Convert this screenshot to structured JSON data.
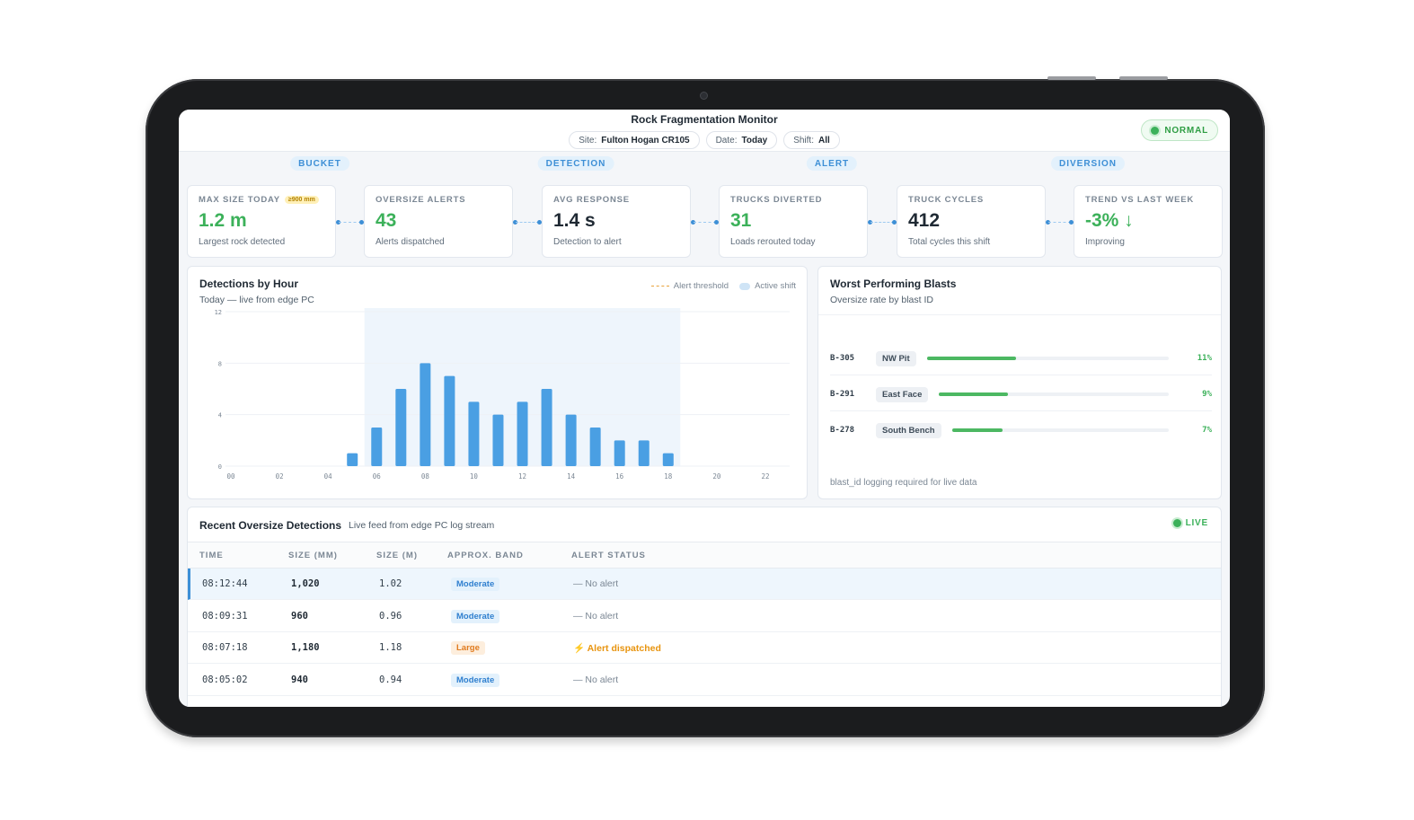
{
  "app": {
    "title": "Rock Fragmentation Monitor",
    "status": "NORMAL",
    "filters": [
      {
        "label": "Site:",
        "value": "Fulton Hogan CR105"
      },
      {
        "label": "Date:",
        "value": "Today"
      },
      {
        "label": "Shift:",
        "value": "All"
      }
    ]
  },
  "stages": [
    "BUCKET",
    "DETECTION",
    "ALERT",
    "DIVERSION"
  ],
  "kpis": [
    {
      "label": "MAX SIZE TODAY",
      "badge": "≥900 mm",
      "value": "1.2 m",
      "sub": "Largest rock detected",
      "color": "green"
    },
    {
      "label": "OVERSIZE ALERTS",
      "value": "43",
      "sub": "Alerts dispatched",
      "color": "green"
    },
    {
      "label": "AVG RESPONSE",
      "value": "1.4 s",
      "sub": "Detection to alert",
      "color": "dark"
    },
    {
      "label": "TRUCKS DIVERTED",
      "value": "31",
      "sub": "Loads rerouted today",
      "color": "green"
    },
    {
      "label": "TRUCK CYCLES",
      "value": "412",
      "sub": "Total cycles this shift",
      "color": "dark"
    },
    {
      "label": "TREND VS LAST WEEK",
      "value": "-3% ↓",
      "sub": "Improving",
      "color": "green"
    }
  ],
  "detections_panel": {
    "title": "Detections by Hour",
    "subtitle": "Today — live from edge PC",
    "legend_threshold": "Alert threshold",
    "legend_shift": "Active shift"
  },
  "chart_data": {
    "type": "bar",
    "title": "Detections by Hour",
    "x": [
      0,
      1,
      2,
      3,
      4,
      5,
      6,
      7,
      8,
      9,
      10,
      11,
      12,
      13,
      14,
      15,
      16,
      17,
      18,
      19,
      20,
      21,
      22,
      23
    ],
    "values": [
      0,
      0,
      0,
      0,
      0,
      1,
      3,
      6,
      8,
      7,
      5,
      4,
      5,
      6,
      4,
      3,
      2,
      2,
      1,
      0,
      0,
      0,
      0,
      0
    ],
    "x_tick_labels": [
      "00",
      "02",
      "04",
      "06",
      "08",
      "10",
      "12",
      "14",
      "16",
      "18",
      "20",
      "22"
    ],
    "y_tick_labels": [
      "0",
      "4",
      "8",
      "12"
    ],
    "ylim": [
      0,
      12
    ],
    "active_shift": [
      5.5,
      18.5
    ],
    "bar_color": "#4a9fe3",
    "shift_color": "#eef5fc"
  },
  "blasts_panel": {
    "title": "Worst Performing Blasts",
    "subtitle": "Oversize rate by blast ID",
    "rows": [
      {
        "id": "B-305",
        "location": "NW Pit",
        "rate": 11,
        "label": "11%"
      },
      {
        "id": "B-291",
        "location": "East Face",
        "rate": 9,
        "label": "9%"
      },
      {
        "id": "B-278",
        "location": "South Bench",
        "rate": 7,
        "label": "7%"
      }
    ],
    "note": "blast_id logging required for live data"
  },
  "recent": {
    "title": "Recent Oversize Detections",
    "subtitle": "Live feed from edge PC log stream",
    "live_label": "LIVE",
    "columns": [
      "TIME",
      "SIZE (MM)",
      "SIZE (M)",
      "APPROX. BAND",
      "ALERT STATUS"
    ],
    "rows": [
      {
        "time": "08:12:44",
        "size_mm": "1,020",
        "size_m": "1.02",
        "band": "Moderate",
        "band_type": "moderate",
        "status": "— No alert",
        "status_type": "none"
      },
      {
        "time": "08:09:31",
        "size_mm": "960",
        "size_m": "0.96",
        "band": "Moderate",
        "band_type": "moderate",
        "status": "— No alert",
        "status_type": "none"
      },
      {
        "time": "08:07:18",
        "size_mm": "1,180",
        "size_m": "1.18",
        "band": "Large",
        "band_type": "large",
        "status": "⚡ Alert dispatched",
        "status_type": "alert"
      },
      {
        "time": "08:05:02",
        "size_mm": "940",
        "size_m": "0.94",
        "band": "Moderate",
        "band_type": "moderate",
        "status": "— No alert",
        "status_type": "none"
      }
    ]
  }
}
